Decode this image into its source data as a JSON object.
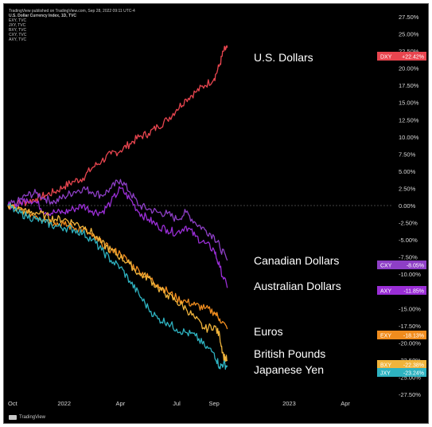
{
  "header": {
    "publisher": "TradingView published on TradingView.com, Sep 28, 2022 09:11 UTC-4",
    "title": "U.S. Dollar Currency Index, 1D, TVC",
    "symbols": [
      "EXY, TVC",
      "JXY, TVC",
      "BXY, TVC",
      "CXY, TVC",
      "AXY, TVC"
    ]
  },
  "footer": {
    "brand": "TradingView"
  },
  "chart_data": {
    "type": "line",
    "ylim": [
      -27.5,
      27.5
    ],
    "y_ticks": [
      "27.50%",
      "25.00%",
      "22.50%",
      "20.00%",
      "17.50%",
      "15.00%",
      "12.50%",
      "10.00%",
      "7.50%",
      "5.00%",
      "2.50%",
      "0.00%",
      "-2.50%",
      "-5.00%",
      "-7.50%",
      "-10.00%",
      "-12.50%",
      "-15.00%",
      "-17.50%",
      "-20.00%",
      "-22.50%",
      "-25.00%",
      "-27.50%"
    ],
    "y_tick_values": [
      27.5,
      25,
      22.5,
      20,
      17.5,
      15,
      12.5,
      10,
      7.5,
      5,
      2.5,
      0,
      -2.5,
      -5,
      -7.5,
      -10,
      -12.5,
      -15,
      -17.5,
      -20,
      -22.5,
      -25,
      -27.5
    ],
    "x_ticks": [
      "Oct",
      "2022",
      "Apr",
      "Jul",
      "Sep",
      "2023",
      "Apr"
    ],
    "x_tick_months": [
      0,
      3,
      6,
      9,
      11,
      15,
      18
    ],
    "xlim_months": [
      0,
      20.5
    ],
    "series": [
      {
        "name": "U.S. Dollars",
        "badge": "DXY",
        "value_label": "+22.42%",
        "color": "#e8454f",
        "points": [
          [
            0,
            0
          ],
          [
            0.5,
            0.3
          ],
          [
            1,
            0.5
          ],
          [
            1.5,
            1
          ],
          [
            2,
            1.5
          ],
          [
            2.5,
            2
          ],
          [
            3,
            2.8
          ],
          [
            3.5,
            3.5
          ],
          [
            4,
            4
          ],
          [
            4.5,
            5.5
          ],
          [
            5,
            6.5
          ],
          [
            5.5,
            7.5
          ],
          [
            6,
            8
          ],
          [
            6.5,
            9
          ],
          [
            7,
            10
          ],
          [
            7.5,
            10.5
          ],
          [
            8,
            11.5
          ],
          [
            8.5,
            12.5
          ],
          [
            9,
            14
          ],
          [
            9.5,
            15.5
          ],
          [
            10,
            16.5
          ],
          [
            10.5,
            17.5
          ],
          [
            11,
            18.5
          ],
          [
            11.3,
            20.5
          ],
          [
            11.5,
            22.5
          ],
          [
            11.7,
            23
          ]
        ]
      },
      {
        "name": "Canadian Dollars",
        "badge": "CXY",
        "value_label": "-8.05%",
        "color": "#8e3fc6",
        "points": [
          [
            0,
            0
          ],
          [
            0.5,
            0.5
          ],
          [
            1,
            1.5
          ],
          [
            1.5,
            1.8
          ],
          [
            2,
            1
          ],
          [
            2.5,
            0.5
          ],
          [
            3,
            1.3
          ],
          [
            3.5,
            2
          ],
          [
            4,
            2.5
          ],
          [
            4.5,
            2
          ],
          [
            5,
            1.5
          ],
          [
            5.5,
            2.5
          ],
          [
            6,
            3.8
          ],
          [
            6.5,
            2
          ],
          [
            7,
            0
          ],
          [
            7.5,
            -0.5
          ],
          [
            8,
            -1
          ],
          [
            8.5,
            -1.2
          ],
          [
            9,
            -2
          ],
          [
            9.5,
            -1
          ],
          [
            10,
            -2.5
          ],
          [
            10.5,
            -3.5
          ],
          [
            11,
            -4.5
          ],
          [
            11.3,
            -6
          ],
          [
            11.7,
            -8
          ]
        ]
      },
      {
        "name": "Australian Dollars",
        "badge": "AXY",
        "value_label": "-11.85%",
        "color": "#9a2ed6",
        "points": [
          [
            0,
            0
          ],
          [
            0.5,
            0
          ],
          [
            1,
            1
          ],
          [
            1.5,
            0.5
          ],
          [
            2,
            -1
          ],
          [
            2.5,
            -1
          ],
          [
            3,
            -1
          ],
          [
            3.5,
            -0.5
          ],
          [
            4,
            0
          ],
          [
            4.5,
            -0.8
          ],
          [
            5,
            -1
          ],
          [
            5.5,
            0.5
          ],
          [
            6,
            2.5
          ],
          [
            6.5,
            1
          ],
          [
            7,
            -1
          ],
          [
            7.5,
            -2
          ],
          [
            8,
            -3
          ],
          [
            8.5,
            -3.5
          ],
          [
            9,
            -4
          ],
          [
            9.5,
            -3
          ],
          [
            10,
            -4.5
          ],
          [
            10.5,
            -5.5
          ],
          [
            11,
            -6.5
          ],
          [
            11.3,
            -9
          ],
          [
            11.7,
            -12
          ]
        ]
      },
      {
        "name": "Euros",
        "badge": "EXY",
        "value_label": "-18.13%",
        "color": "#f08c1e",
        "points": [
          [
            0,
            0
          ],
          [
            0.5,
            -0.5
          ],
          [
            1,
            -1
          ],
          [
            1.5,
            -1.5
          ],
          [
            2,
            -2
          ],
          [
            2.5,
            -2.5
          ],
          [
            3,
            -2.8
          ],
          [
            3.5,
            -3.2
          ],
          [
            4,
            -3.5
          ],
          [
            4.5,
            -4.5
          ],
          [
            5,
            -5.5
          ],
          [
            5.5,
            -6.5
          ],
          [
            6,
            -7
          ],
          [
            6.5,
            -8.5
          ],
          [
            7,
            -9.5
          ],
          [
            7.5,
            -10.5
          ],
          [
            8,
            -11.5
          ],
          [
            8.5,
            -12.5
          ],
          [
            9,
            -13.5
          ],
          [
            9.5,
            -14
          ],
          [
            10,
            -14.5
          ],
          [
            10.5,
            -15
          ],
          [
            11,
            -15.5
          ],
          [
            11.3,
            -16.5
          ],
          [
            11.7,
            -18
          ]
        ]
      },
      {
        "name": "British Pounds",
        "badge": "BXY",
        "value_label": "-22.38%",
        "color": "#f0b43c",
        "points": [
          [
            0,
            0
          ],
          [
            0.5,
            -0.5
          ],
          [
            1,
            -1
          ],
          [
            1.5,
            -1
          ],
          [
            2,
            -1.5
          ],
          [
            2.5,
            -2
          ],
          [
            3,
            -2
          ],
          [
            3.5,
            -2.5
          ],
          [
            4,
            -3
          ],
          [
            4.5,
            -4
          ],
          [
            5,
            -5.5
          ],
          [
            5.5,
            -6.5
          ],
          [
            6,
            -7.5
          ],
          [
            6.5,
            -8.5
          ],
          [
            7,
            -10
          ],
          [
            7.5,
            -10.5
          ],
          [
            8,
            -12
          ],
          [
            8.5,
            -13
          ],
          [
            9,
            -14
          ],
          [
            9.5,
            -15
          ],
          [
            10,
            -16.5
          ],
          [
            10.5,
            -18
          ],
          [
            11,
            -17.5
          ],
          [
            11.3,
            -19
          ],
          [
            11.5,
            -22
          ],
          [
            11.7,
            -22.5
          ]
        ]
      },
      {
        "name": "Japanese Yen",
        "badge": "JXY",
        "value_label": "-23.24%",
        "color": "#2eb2c0",
        "points": [
          [
            0,
            0
          ],
          [
            0.5,
            -1
          ],
          [
            1,
            -1.5
          ],
          [
            1.5,
            -2
          ],
          [
            2,
            -2.5
          ],
          [
            2.5,
            -3
          ],
          [
            3,
            -3.2
          ],
          [
            3.5,
            -3.5
          ],
          [
            4,
            -4
          ],
          [
            4.5,
            -5
          ],
          [
            5,
            -6.5
          ],
          [
            5.5,
            -8
          ],
          [
            6,
            -9
          ],
          [
            6.5,
            -11
          ],
          [
            7,
            -13
          ],
          [
            7.5,
            -15
          ],
          [
            8,
            -16.5
          ],
          [
            8.5,
            -17
          ],
          [
            9,
            -18
          ],
          [
            9.5,
            -18.5
          ],
          [
            10,
            -19
          ],
          [
            10.5,
            -20.5
          ],
          [
            11,
            -21.5
          ],
          [
            11.3,
            -23.5
          ],
          [
            11.5,
            -23
          ],
          [
            11.7,
            -23.5
          ]
        ]
      }
    ]
  }
}
